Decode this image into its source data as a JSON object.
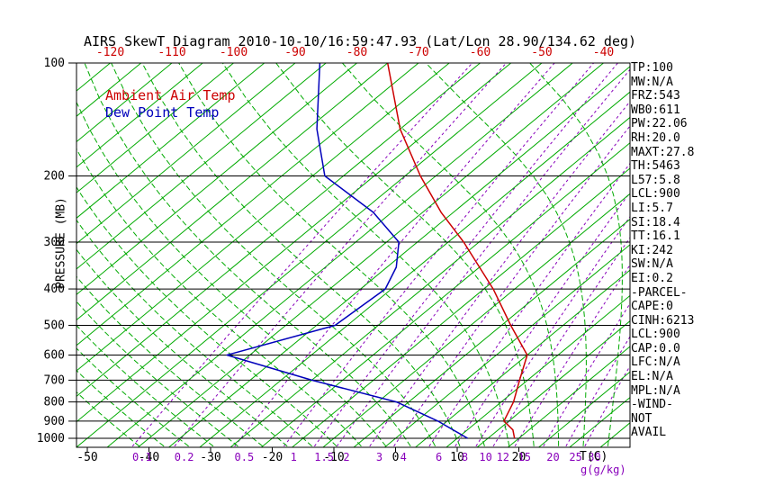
{
  "chart_data": {
    "type": "line",
    "variant": "skew-t-log-p",
    "title": "AIRS SkewT Diagram 2010-10-10/16:59:47.93 (Lat/Lon 28.90/134.62 deg)",
    "ylabel": "PRESSURE (MB)",
    "xlabel": "T(C)",
    "xlabel2": "g(g/kg)",
    "pressure_axis": {
      "scale": "log",
      "levels_mb": [
        100,
        200,
        300,
        400,
        500,
        600,
        700,
        800,
        900,
        1000
      ],
      "min_mb": 100,
      "max_mb": 1050
    },
    "top_axis_temps_c": [
      -120,
      -110,
      -100,
      -90,
      -80,
      -70,
      -60,
      -50,
      -40
    ],
    "bottom_axis_temps_c": [
      -50,
      -40,
      -30,
      -20,
      -10,
      0,
      10,
      20
    ],
    "isotherms_c": {
      "min": -120,
      "max": 40,
      "step": 5
    },
    "moist_adiabats_c": {
      "min": -40,
      "max": 36,
      "step": 4
    },
    "mixing_ratio_lines_g_kg": [
      0.1,
      0.2,
      0.5,
      1,
      1.5,
      2,
      3,
      4,
      6,
      8,
      10,
      12,
      15,
      20,
      25,
      30
    ],
    "legend": [
      {
        "label": "Ambient Air Temp",
        "color": "#cc0000"
      },
      {
        "label": "Dew Point Temp",
        "color": "#0000bb"
      }
    ],
    "series": [
      {
        "name": "Ambient Air Temp",
        "color": "#cc0000",
        "points_p_t": [
          [
            100,
            -75
          ],
          [
            150,
            -60
          ],
          [
            200,
            -47.5
          ],
          [
            250,
            -37
          ],
          [
            300,
            -27.5
          ],
          [
            400,
            -13.5
          ],
          [
            500,
            -3.5
          ],
          [
            600,
            5
          ],
          [
            700,
            8.7
          ],
          [
            800,
            12
          ],
          [
            900,
            14.2
          ],
          [
            950,
            17.4
          ],
          [
            1000,
            19.3
          ]
        ]
      },
      {
        "name": "Dew Point Temp",
        "color": "#0000bb",
        "points_p_t": [
          [
            100,
            -86
          ],
          [
            150,
            -73.5
          ],
          [
            200,
            -63
          ],
          [
            250,
            -48
          ],
          [
            300,
            -38
          ],
          [
            350,
            -33.5
          ],
          [
            400,
            -31
          ],
          [
            500,
            -32
          ],
          [
            600,
            -43.7
          ],
          [
            700,
            -25
          ],
          [
            800,
            -7
          ],
          [
            900,
            3.5
          ],
          [
            1000,
            11.7
          ]
        ]
      }
    ],
    "colors": {
      "isotherm": "#00aa00",
      "moist_adiabat": "#00aa00",
      "mixing_ratio": "#8800bb",
      "pressure_line": "#000000",
      "top_labels": "#cc0000",
      "bottom_temp_labels": "#000000"
    }
  },
  "stats_panel": {
    "lines": [
      "TP:100",
      "MW:N/A",
      "FRZ:543",
      "WB0:611",
      "PW:22.06",
      "RH:20.0",
      "MAXT:27.8",
      "TH:5463",
      "L57:5.8",
      "LCL:900",
      "LI:5.7",
      "SI:18.4",
      "TT:16.1",
      "KI:242",
      "SW:N/A",
      "EI:0.2",
      "-PARCEL-",
      "CAPE:0",
      "CINH:6213",
      "LCL:900",
      "CAP:0.0",
      "LFC:N/A",
      "EL:N/A",
      "MPL:N/A",
      "-WIND-",
      "NOT",
      "AVAIL"
    ]
  }
}
